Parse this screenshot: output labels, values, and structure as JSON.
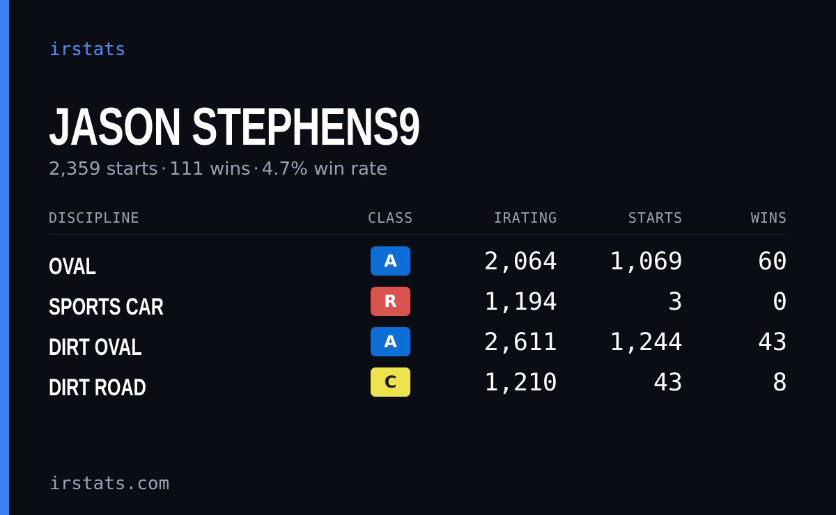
{
  "brand": "irstats",
  "player": {
    "name": "JASON STEPHENS9",
    "starts": "2,359 starts",
    "wins": "111 wins",
    "win_rate": "4.7% win rate",
    "separator": "·"
  },
  "table": {
    "headers": {
      "discipline": "DISCIPLINE",
      "class": "CLASS",
      "irating": "IRATING",
      "starts": "STARTS",
      "wins": "WINS"
    },
    "rows": [
      {
        "discipline": "OVAL",
        "class": "A",
        "irating": "2,064",
        "starts": "1,069",
        "wins": "60"
      },
      {
        "discipline": "SPORTS CAR",
        "class": "R",
        "irating": "1,194",
        "starts": "3",
        "wins": "0"
      },
      {
        "discipline": "DIRT OVAL",
        "class": "A",
        "irating": "2,611",
        "starts": "1,244",
        "wins": "43"
      },
      {
        "discipline": "DIRT ROAD",
        "class": "C",
        "irating": "1,210",
        "starts": "43",
        "wins": "8"
      }
    ]
  },
  "class_colors": {
    "A": {
      "bg": "#0d6fd6",
      "fg": "#ffffff"
    },
    "R": {
      "bg": "#d9534f",
      "fg": "#ffffff"
    },
    "C": {
      "bg": "#eee34e",
      "fg": "#1a1a1a"
    }
  },
  "colors": {
    "accent": "#3b82f6",
    "background": "#0a0d14",
    "muted_text": "#98a2b3"
  },
  "footer": "irstats.com"
}
